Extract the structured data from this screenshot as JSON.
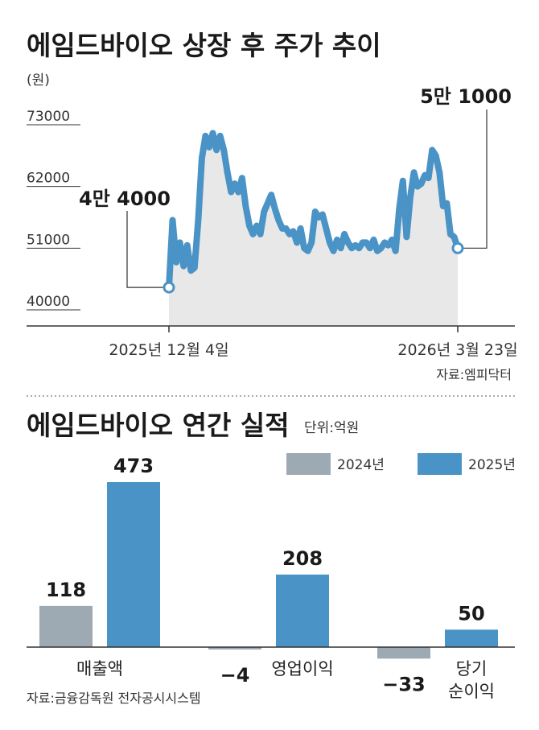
{
  "colors": {
    "series_2024": "#9eaab3",
    "series_2025": "#4a93c6",
    "line": "#4a93c6",
    "area": "#e8e8e8"
  },
  "chart_data": [
    {
      "type": "area",
      "title": "에임드바이오 상장 후 주가 추이",
      "unit": "(원)",
      "ylim": [
        40000,
        73000
      ],
      "yticks": [
        "73000",
        "62000",
        "51000",
        "40000"
      ],
      "x_start_label": "2025년 12월 4일",
      "x_end_label": "2026년 3월 23일",
      "start_callout": "4만 4000",
      "end_callout": "5만 1000",
      "source": "자료:엠피닥터",
      "values": [
        44000,
        56000,
        48500,
        52000,
        47800,
        51500,
        47000,
        47500,
        56000,
        67000,
        71000,
        69000,
        71500,
        68500,
        71000,
        68500,
        64500,
        61000,
        62500,
        61000,
        63500,
        58500,
        55000,
        53500,
        55000,
        53500,
        57500,
        59000,
        60500,
        58000,
        56000,
        54500,
        54500,
        53500,
        54000,
        52000,
        54500,
        51000,
        50500,
        52000,
        57500,
        56500,
        57000,
        54500,
        52000,
        50500,
        52500,
        51000,
        53500,
        52000,
        51000,
        51500,
        51000,
        52000,
        52000,
        51000,
        52500,
        50500,
        51000,
        52000,
        51500,
        52500,
        50500,
        58000,
        63000,
        53000,
        60000,
        64500,
        62000,
        62500,
        64000,
        63500,
        68500,
        67500,
        64500,
        58500,
        59000,
        53500,
        53000,
        51000
      ]
    },
    {
      "type": "bar",
      "title": "에임드바이오 연간 실적",
      "unit": "단위:억원",
      "categories": [
        "매출액",
        "영업이익",
        "당기 순이익"
      ],
      "category_lines": [
        [
          "매출액"
        ],
        [
          "영업이익"
        ],
        [
          "당기",
          "순이익"
        ]
      ],
      "series": [
        {
          "name": "2024년",
          "values": [
            118,
            -4,
            -33
          ]
        },
        {
          "name": "2025년",
          "values": [
            473,
            208,
            50
          ]
        }
      ],
      "value_labels": [
        [
          "118",
          "−4",
          "−33"
        ],
        [
          "473",
          "208",
          "50"
        ]
      ],
      "source": "자료:금융감독원 전자공시시스템"
    }
  ]
}
